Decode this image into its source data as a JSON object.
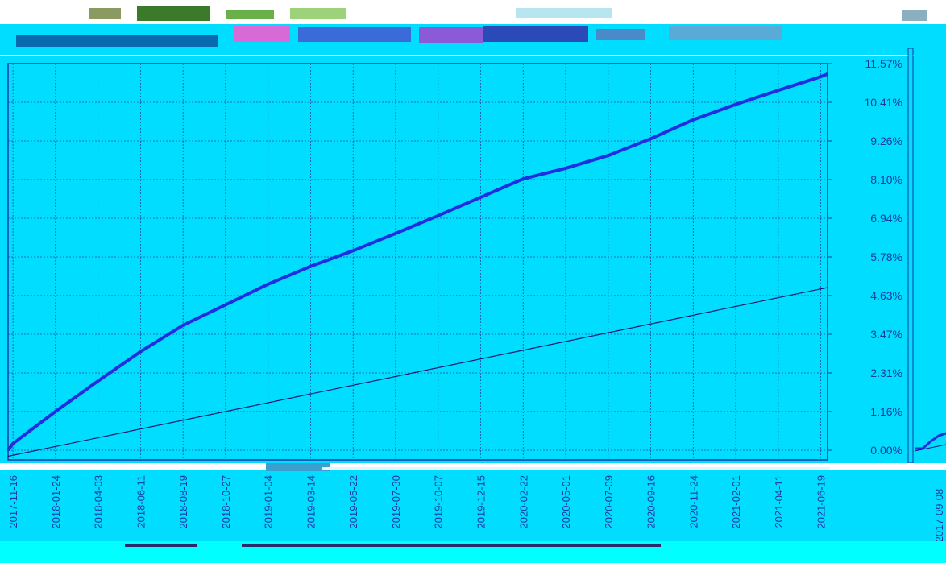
{
  "chart_data": {
    "type": "line",
    "title": "",
    "xlabel": "",
    "ylabel": "",
    "x_ticks": [
      "2017-11-16",
      "2018-01-24",
      "2018-04-03",
      "2018-06-11",
      "2018-08-19",
      "2018-10-27",
      "2019-01-04",
      "2019-03-14",
      "2019-05-22",
      "2019-07-30",
      "2019-10-07",
      "2019-12-15",
      "2020-02-22",
      "2020-05-01",
      "2020-07-09",
      "2020-09-16",
      "2020-11-24",
      "2021-02-01",
      "2021-04-11",
      "2021-06-19"
    ],
    "y_ticks": [
      "0.00%",
      "1.16%",
      "2.31%",
      "3.47%",
      "4.63%",
      "5.78%",
      "6.94%",
      "8.10%",
      "9.26%",
      "10.41%",
      "11.57%"
    ],
    "ylim": [
      0,
      11.57
    ],
    "grid": true,
    "series": [
      {
        "color": "#1f2fe0",
        "x": [
          "2017-11-08",
          "2017-11-16",
          "2018-01-24",
          "2018-04-03",
          "2018-06-11",
          "2018-08-19",
          "2018-10-27",
          "2019-01-04",
          "2019-03-14",
          "2019-05-22",
          "2019-07-30",
          "2019-10-07",
          "2019-12-15",
          "2020-02-22",
          "2020-05-01",
          "2020-07-09",
          "2020-09-16",
          "2020-11-24",
          "2021-02-01",
          "2021-04-11",
          "2021-06-19",
          "2021-06-30"
        ],
        "y": [
          0.0,
          0.2,
          1.16,
          2.07,
          2.95,
          3.74,
          4.35,
          4.97,
          5.5,
          5.97,
          6.49,
          7.02,
          7.57,
          8.12,
          8.44,
          8.82,
          9.32,
          9.89,
          10.35,
          10.77,
          11.18,
          11.26
        ]
      },
      {
        "color": "#1a1a6e",
        "x": [
          "2017-11-08",
          "2021-06-30"
        ],
        "y": [
          -0.18,
          4.87
        ]
      }
    ],
    "right_panel": {
      "x_ticks": [
        "2017-09-08"
      ]
    }
  }
}
